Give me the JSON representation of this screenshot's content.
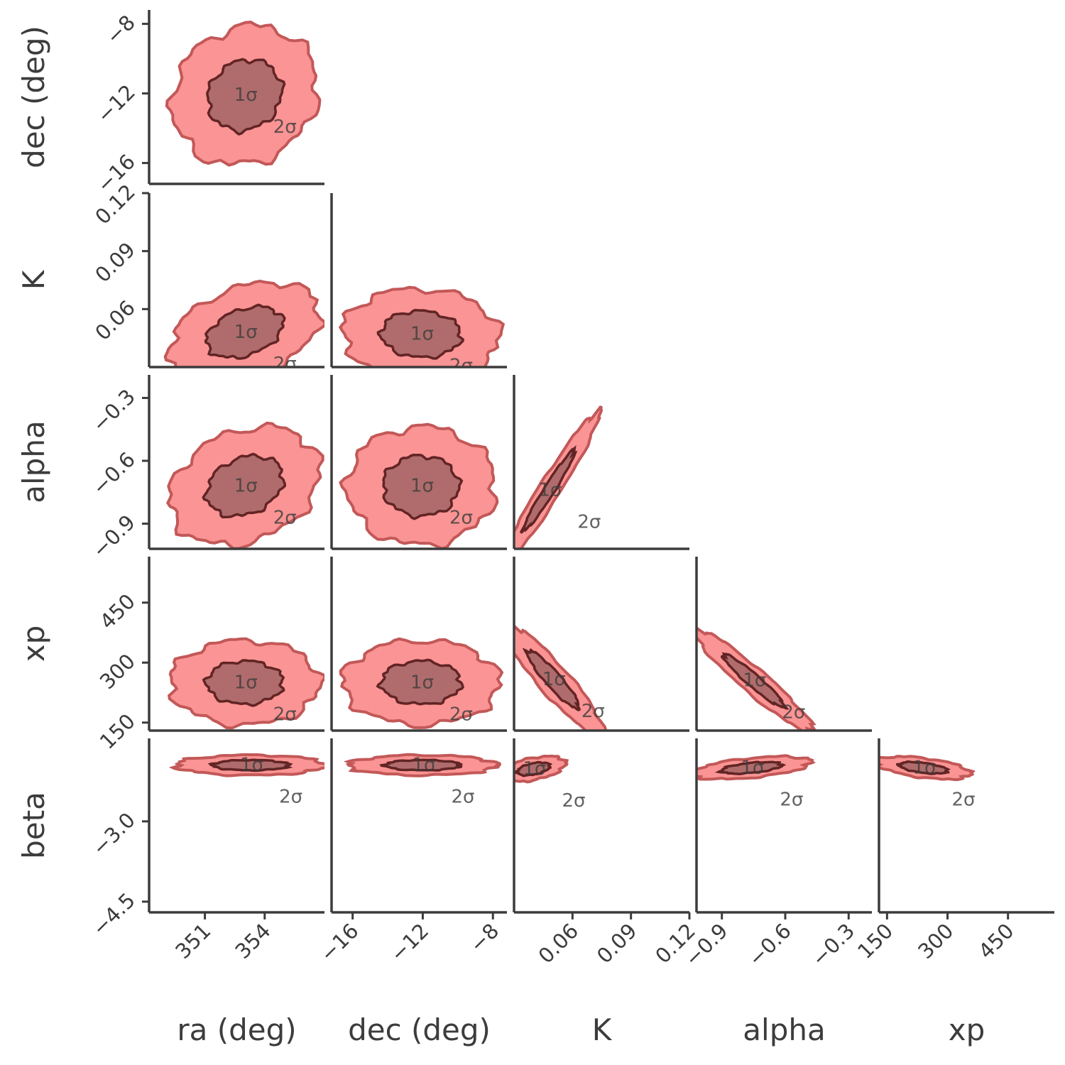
{
  "chart_data": {
    "type": "contour",
    "parameters": [
      {
        "key": "ra",
        "label": "ra (deg)",
        "range": [
          348.2,
          357.0
        ],
        "ticks": [
          351,
          354
        ],
        "tick_labels": [
          "351",
          "354"
        ]
      },
      {
        "key": "dec",
        "label": "dec (deg)",
        "range": [
          -17.2,
          -7.2
        ],
        "ticks": [
          -16,
          -12,
          -8
        ],
        "tick_labels": [
          "−16",
          "−12",
          "−8"
        ]
      },
      {
        "key": "K",
        "label": "K",
        "range": [
          0.03,
          0.12
        ],
        "ticks": [
          0.06,
          0.09,
          0.12
        ],
        "tick_labels": [
          "0.06",
          "0.09",
          "0.12"
        ]
      },
      {
        "key": "alpha",
        "label": "alpha",
        "range": [
          -1.02,
          -0.19
        ],
        "ticks": [
          -0.9,
          -0.6,
          -0.3
        ],
        "tick_labels": [
          "−0.9",
          "−0.6",
          "−0.3"
        ]
      },
      {
        "key": "xp",
        "label": "xp",
        "range": [
          130,
          565
        ],
        "ticks": [
          150,
          300,
          450
        ],
        "tick_labels": [
          "150",
          "300",
          "450"
        ]
      },
      {
        "key": "beta",
        "label": "beta",
        "range": [
          -4.7,
          -1.45
        ],
        "ticks": [
          -3.0,
          -4.5
        ],
        "tick_labels": [
          "−3.0",
          "−4.5"
        ]
      }
    ],
    "level_labels": [
      "1σ",
      "2σ"
    ],
    "colors": {
      "outer_fill": "#fb8f8f",
      "inner_fill": "#ad6a6a",
      "outer_line": "#c05050",
      "inner_line": "#5a1f1f",
      "axis": "#3c3c3c",
      "text": "#3c3c3c"
    },
    "panels": [
      {
        "row": "dec",
        "col": "ra",
        "center": [
          353.0,
          -12.1
        ],
        "sd": [
          1.55,
          1.7
        ],
        "corr": 0.12
      },
      {
        "row": "K",
        "col": "ra",
        "center": [
          353.0,
          0.048
        ],
        "sd": [
          1.6,
          0.011
        ],
        "corr": 0.35
      },
      {
        "row": "K",
        "col": "dec",
        "center": [
          -12.1,
          0.047
        ],
        "sd": [
          1.9,
          0.01
        ],
        "corr": -0.05
      },
      {
        "row": "alpha",
        "col": "ra",
        "center": [
          353.0,
          -0.72
        ],
        "sd": [
          1.6,
          0.12
        ],
        "corr": 0.25
      },
      {
        "row": "alpha",
        "col": "dec",
        "center": [
          -12.1,
          -0.72
        ],
        "sd": [
          1.8,
          0.12
        ],
        "corr": 0.0
      },
      {
        "row": "alpha",
        "col": "K",
        "center": [
          0.048,
          -0.74
        ],
        "sd": [
          0.011,
          0.16
        ],
        "corr": 0.97
      },
      {
        "row": "xp",
        "col": "ra",
        "center": [
          353.0,
          250
        ],
        "sd": [
          1.6,
          45
        ],
        "corr": 0.0
      },
      {
        "row": "xp",
        "col": "dec",
        "center": [
          -12.1,
          250
        ],
        "sd": [
          1.9,
          45
        ],
        "corr": 0.0
      },
      {
        "row": "xp",
        "col": "K",
        "center": [
          0.05,
          258
        ],
        "sd": [
          0.011,
          60
        ],
        "corr": -0.92
      },
      {
        "row": "xp",
        "col": "alpha",
        "center": [
          -0.75,
          255
        ],
        "sd": [
          0.12,
          55
        ],
        "corr": -0.95
      },
      {
        "row": "beta",
        "col": "ra",
        "center": [
          353.3,
          -1.95
        ],
        "sd": [
          1.6,
          0.08
        ],
        "corr": 0.0
      },
      {
        "row": "beta",
        "col": "dec",
        "center": [
          -12.0,
          -1.95
        ],
        "sd": [
          1.8,
          0.08
        ],
        "corr": 0.0
      },
      {
        "row": "beta",
        "col": "K",
        "center": [
          0.04,
          -2.02
        ],
        "sd": [
          0.007,
          0.1
        ],
        "corr": 0.45
      },
      {
        "row": "beta",
        "col": "alpha",
        "center": [
          -0.76,
          -2.0
        ],
        "sd": [
          0.12,
          0.09
        ],
        "corr": 0.5
      },
      {
        "row": "beta",
        "col": "xp",
        "center": [
          240,
          -2.0
        ],
        "sd": [
          50,
          0.09
        ],
        "corr": -0.5
      }
    ]
  }
}
